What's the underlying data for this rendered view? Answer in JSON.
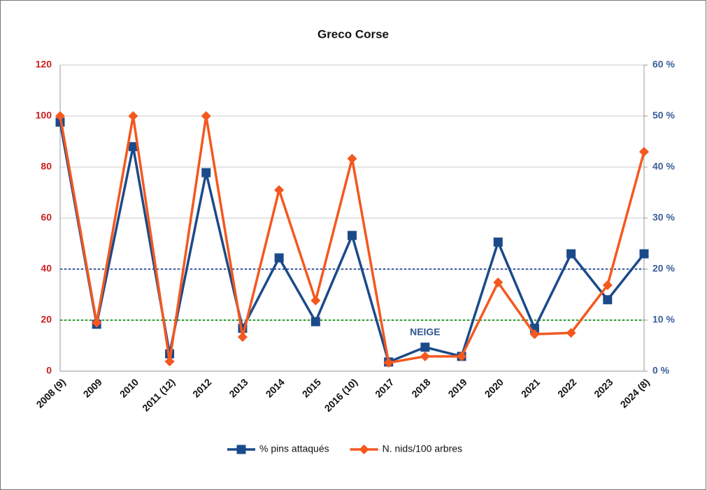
{
  "chart_data": {
    "type": "line",
    "title": "Greco Corse",
    "categories": [
      "2008 (9)",
      "2009",
      "2010",
      "2011 (12)",
      "2012",
      "2013",
      "2014",
      "2015",
      "2016 (10)",
      "2017",
      "2018",
      "2019",
      "2020",
      "2021",
      "2022",
      "2023",
      "2024 (8)"
    ],
    "series": [
      {
        "name": "% pins attaqués",
        "color": "#1b4a8a",
        "axis": "y2",
        "marker": "square",
        "values": [
          48.8,
          9.2,
          44,
          3.4,
          38.9,
          8.4,
          22.2,
          9.7,
          26.6,
          1.8,
          4.7,
          2.9,
          25.3,
          8.4,
          23,
          14,
          23
        ]
      },
      {
        "name": "N. nids/100 arbres",
        "color": "#f4581f",
        "marker": "diamond",
        "values": [
          100,
          19,
          100,
          3.8,
          100,
          13.4,
          71,
          27.7,
          83.3,
          3.3,
          5.8,
          5.8,
          34.8,
          14.5,
          15,
          33.7,
          86
        ]
      }
    ],
    "ylim": [
      0,
      120
    ],
    "yticks": [
      0,
      20,
      40,
      60,
      80,
      100,
      120
    ],
    "y2lim": [
      0,
      60
    ],
    "y2ticks": [
      {
        "value": 0,
        "label": "0 %"
      },
      {
        "value": 10,
        "label": "10 %"
      },
      {
        "value": 20,
        "label": "20 %"
      },
      {
        "value": 30,
        "label": "30 %"
      },
      {
        "value": 40,
        "label": "40 %"
      },
      {
        "value": 50,
        "label": "50 %"
      },
      {
        "value": 60,
        "label": "60 %"
      }
    ],
    "grid": true,
    "reference_lines": [
      {
        "value": 40,
        "color": "#3b5ba8"
      },
      {
        "value": 20,
        "color": "#22a022"
      }
    ],
    "annotations": [
      {
        "text": "NEIGE"
      }
    ],
    "legend": "bottom"
  }
}
